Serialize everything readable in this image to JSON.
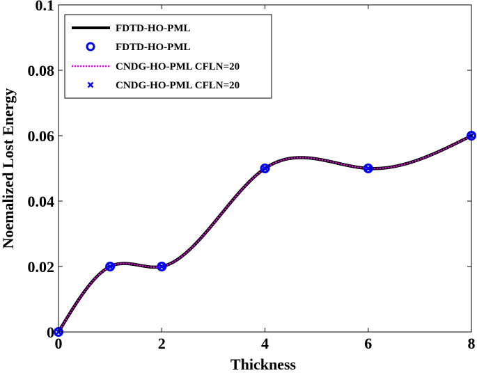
{
  "chart_data": {
    "type": "line",
    "title": "",
    "xlabel": "Thickness",
    "ylabel": "Noemalized Lost Energy",
    "xlim": [
      0,
      8
    ],
    "ylim": [
      0,
      0.1
    ],
    "x_ticks": [
      0,
      2,
      4,
      6,
      8
    ],
    "x_tick_labels": [
      "0",
      "2",
      "4",
      "6",
      "8"
    ],
    "y_ticks": [
      0,
      0.02,
      0.04,
      0.06,
      0.08,
      0.1
    ],
    "y_tick_labels": [
      "0",
      "0.02",
      "0.04",
      "0.06",
      "0.08",
      "0.1"
    ],
    "grid": false,
    "legend_position": "top-left",
    "x": [
      0,
      1,
      2,
      4,
      6,
      8
    ],
    "series": [
      {
        "name": "FDTD-HO-PML",
        "style": "solid-line",
        "color": "#000000",
        "values": [
          0,
          0.02,
          0.02,
          0.05,
          0.05,
          0.06
        ]
      },
      {
        "name": "FDTD-HO-PML",
        "style": "circle-marker",
        "color": "#0000ff",
        "values": [
          0,
          0.02,
          0.02,
          0.05,
          0.05,
          0.06
        ]
      },
      {
        "name": "CNDG-HO-PML CFLN=20",
        "style": "dotted-line",
        "color": "#ff00ff",
        "values": [
          0,
          0.02,
          0.02,
          0.05,
          0.05,
          0.06
        ]
      },
      {
        "name": "CNDG-HO-PML CFLN=20",
        "style": "x-marker",
        "color": "#0000ff",
        "values": [
          0,
          0.02,
          0.02,
          0.05,
          0.05,
          0.06
        ]
      }
    ]
  }
}
